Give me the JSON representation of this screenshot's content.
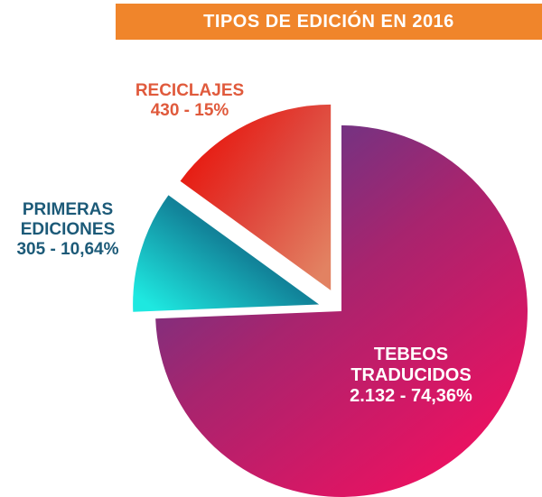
{
  "chart_data": {
    "type": "pie",
    "title": "TIPOS DE EDICIÓN EN 2016",
    "slices": [
      {
        "name": "TEBEOS TRADUCIDOS",
        "name_lines": [
          "TEBEOS",
          "TRADUCIDOS"
        ],
        "value": 2132,
        "value_label": "2.132 - 74,36%",
        "percent": 74.36,
        "color_start": "#5a3a8c",
        "color_mid": "#a8246e",
        "color_end": "#f01060"
      },
      {
        "name": "PRIMERAS EDICIONES",
        "name_lines": [
          "PRIMERAS",
          "EDICIONES"
        ],
        "value": 305,
        "value_label": "305 - 10,64%",
        "percent": 10.64,
        "color_start": "#1a5a78",
        "color_mid": "#12849a",
        "color_end": "#1ee8e0"
      },
      {
        "name": "RECICLAJES",
        "name_lines": [
          "RECICLAJES"
        ],
        "value": 430,
        "value_label": "430 - 15%",
        "percent": 15,
        "color_start": "#e8180e",
        "color_mid": "#e0443a",
        "color_end": "#e28262"
      }
    ],
    "exploded": true,
    "legend": "none",
    "title_bar_color": "#f0852b"
  }
}
